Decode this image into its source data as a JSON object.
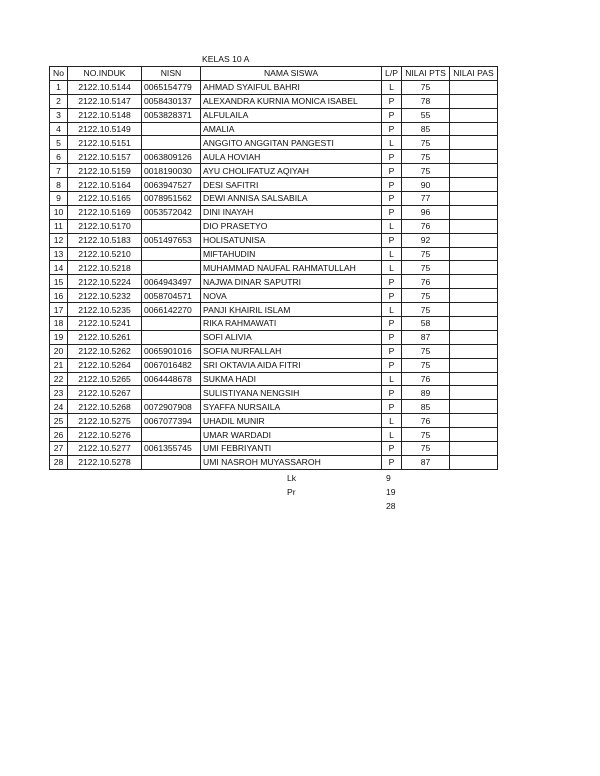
{
  "title": "KELAS 10 A",
  "headers": [
    "No",
    "NO.INDUK",
    "NISN",
    "NAMA SISWA",
    "L/P",
    "NILAI PTS",
    "NILAI PAS"
  ],
  "rows": [
    {
      "no": "1",
      "induk": "2122.10.5144",
      "nisn": "0065154779",
      "nama": "AHMAD SYAIFUL BAHRI",
      "lp": "L",
      "pts": "75",
      "pas": ""
    },
    {
      "no": "2",
      "induk": "2122.10.5147",
      "nisn": "0058430137",
      "nama": "ALEXANDRA KURNIA MONICA ISABEL",
      "lp": "P",
      "pts": "78",
      "pas": ""
    },
    {
      "no": "3",
      "induk": "2122.10.5148",
      "nisn": "0053828371",
      "nama": "ALFULAILA",
      "lp": "P",
      "pts": "55",
      "pas": ""
    },
    {
      "no": "4",
      "induk": "2122.10.5149",
      "nisn": "",
      "nama": "AMALIA",
      "lp": "P",
      "pts": "85",
      "pas": ""
    },
    {
      "no": "5",
      "induk": "2122.10.5151",
      "nisn": "",
      "nama": "ANGGITO ANGGITAN PANGESTI",
      "lp": "L",
      "pts": "75",
      "pas": ""
    },
    {
      "no": "6",
      "induk": "2122.10.5157",
      "nisn": "0063809126",
      "nama": "AULA HOVIAH",
      "lp": "P",
      "pts": "75",
      "pas": ""
    },
    {
      "no": "7",
      "induk": "2122.10.5159",
      "nisn": "0018190030",
      "nama": "AYU CHOLIFATUZ AQIYAH",
      "lp": "P",
      "pts": "75",
      "pas": ""
    },
    {
      "no": "8",
      "induk": "2122.10.5164",
      "nisn": "0063947527",
      "nama": "DESI SAFITRI",
      "lp": "P",
      "pts": "90",
      "pas": ""
    },
    {
      "no": "9",
      "induk": "2122.10.5165",
      "nisn": "0078951562",
      "nama": "DEWI ANNISA SALSABILA",
      "lp": "P",
      "pts": "77",
      "pas": ""
    },
    {
      "no": "10",
      "induk": "2122.10.5169",
      "nisn": "0053572042",
      "nama": "DINI INAYAH",
      "lp": "P",
      "pts": "96",
      "pas": ""
    },
    {
      "no": "11",
      "induk": "2122.10.5170",
      "nisn": "",
      "nama": "DIO PRASETYO",
      "lp": "L",
      "pts": "76",
      "pas": ""
    },
    {
      "no": "12",
      "induk": "2122.10.5183",
      "nisn": "0051497653",
      "nama": "HOLISATUNISA",
      "lp": "P",
      "pts": "92",
      "pas": ""
    },
    {
      "no": "13",
      "induk": "2122.10.5210",
      "nisn": "",
      "nama": "MIFTAHUDIN",
      "lp": "L",
      "pts": "75",
      "pas": ""
    },
    {
      "no": "14",
      "induk": "2122.10.5218",
      "nisn": "",
      "nama": "MUHAMMAD NAUFAL RAHMATULLAH",
      "lp": "L",
      "pts": "75",
      "pas": ""
    },
    {
      "no": "15",
      "induk": "2122.10.5224",
      "nisn": "0064943497",
      "nama": "NAJWA DINAR SAPUTRI",
      "lp": "P",
      "pts": "76",
      "pas": ""
    },
    {
      "no": "16",
      "induk": "2122.10.5232",
      "nisn": "0058704571",
      "nama": "NOVA",
      "lp": "P",
      "pts": "75",
      "pas": ""
    },
    {
      "no": "17",
      "induk": "2122.10.5235",
      "nisn": "0066142270",
      "nama": "PANJI KHAIRIL ISLAM",
      "lp": "L",
      "pts": "75",
      "pas": ""
    },
    {
      "no": "18",
      "induk": "2122.10.5241",
      "nisn": "",
      "nama": "RIKA RAHMAWATI",
      "lp": "P",
      "pts": "58",
      "pas": ""
    },
    {
      "no": "19",
      "induk": "2122.10.5261",
      "nisn": "",
      "nama": "SOFI ALIVIA",
      "lp": "P",
      "pts": "87",
      "pas": ""
    },
    {
      "no": "20",
      "induk": "2122.10.5262",
      "nisn": "0065901016",
      "nama": "SOFIA NURFALLAH",
      "lp": "P",
      "pts": "75",
      "pas": ""
    },
    {
      "no": "21",
      "induk": "2122.10.5264",
      "nisn": "0067016482",
      "nama": "SRI OKTAVIA AIDA FITRI",
      "lp": "P",
      "pts": "75",
      "pas": ""
    },
    {
      "no": "22",
      "induk": "2122.10.5265",
      "nisn": "0064448678",
      "nama": "SUKMA HADI",
      "lp": "L",
      "pts": "76",
      "pas": ""
    },
    {
      "no": "23",
      "induk": "2122.10.5267",
      "nisn": "",
      "nama": "SULISTIYANA NENGSIH",
      "lp": "P",
      "pts": "89",
      "pas": ""
    },
    {
      "no": "24",
      "induk": "2122.10.5268",
      "nisn": "0072907908",
      "nama": "SYAFFA NURSAILA",
      "lp": "P",
      "pts": "85",
      "pas": ""
    },
    {
      "no": "25",
      "induk": "2122.10.5275",
      "nisn": "0067077394",
      "nama": "UHADIL MUNIR",
      "lp": "L",
      "pts": "76",
      "pas": ""
    },
    {
      "no": "26",
      "induk": "2122.10.5276",
      "nisn": "",
      "nama": "UMAR WARDADI",
      "lp": "L",
      "pts": "75",
      "pas": ""
    },
    {
      "no": "27",
      "induk": "2122.10.5277",
      "nisn": "0061355745",
      "nama": "UMI FEBRIYANTI",
      "lp": "P",
      "pts": "75",
      "pas": ""
    },
    {
      "no": "28",
      "induk": "2122.10.5278",
      "nisn": "",
      "nama": "UMI NASROH MUYASSAROH",
      "lp": "P",
      "pts": "87",
      "pas": ""
    }
  ],
  "summary": {
    "lk_label": "Lk",
    "lk_value": "9",
    "pr_label": "Pr",
    "pr_value": "19",
    "total_value": "28"
  }
}
